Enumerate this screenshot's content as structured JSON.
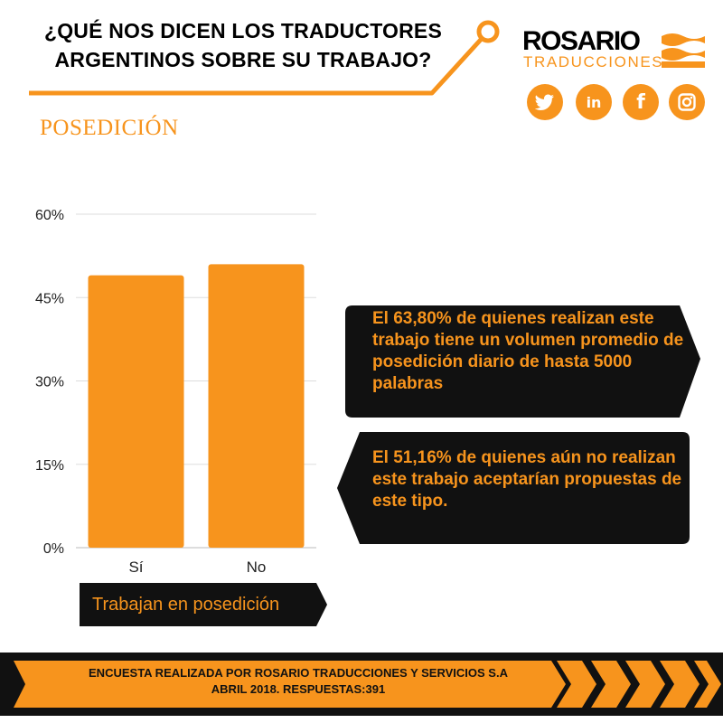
{
  "header": {
    "title_line1": "¿QUÉ NOS DICEN LOS TRADUCTORES",
    "title_line2": "ARGENTINOS SOBRE SU TRABAJO?"
  },
  "logo": {
    "main": "ROSARIO",
    "sub": "TRADUCCIONES"
  },
  "social": [
    {
      "name": "twitter",
      "icon": "twitter-icon"
    },
    {
      "name": "linkedin",
      "icon": "linkedin-icon",
      "glyph": "in"
    },
    {
      "name": "facebook",
      "icon": "facebook-icon",
      "glyph": "f"
    },
    {
      "name": "instagram",
      "icon": "instagram-icon"
    }
  ],
  "section_title": "POSEDICIÓN",
  "chart_data": {
    "type": "bar",
    "categories": [
      "Sí",
      "No"
    ],
    "values": [
      49,
      51
    ],
    "ylim": [
      0,
      60
    ],
    "yticks": [
      0,
      15,
      30,
      45,
      60
    ],
    "ytick_labels": [
      "0%",
      "15%",
      "30%",
      "45%",
      "60%"
    ],
    "grid": true,
    "bar_color": "#f7941d",
    "category_label": "Trabajan en posedición"
  },
  "callouts": [
    {
      "text": "El 63,80% de quienes realizan este trabajo tiene un volumen promedio de posedición diario de hasta 5000 palabras"
    },
    {
      "text": "El 51,16% de quienes aún no realizan este trabajo aceptarían propuestas de este tipo."
    }
  ],
  "footer": {
    "line1": "ENCUESTA  REALIZADA POR ROSARIO TRADUCCIONES Y SERVICIOS S.A",
    "line2": "ABRIL 2018. RESPUESTAS:391"
  },
  "colors": {
    "accent": "#f7941d",
    "dark": "#111111",
    "background": "#ffffff"
  }
}
